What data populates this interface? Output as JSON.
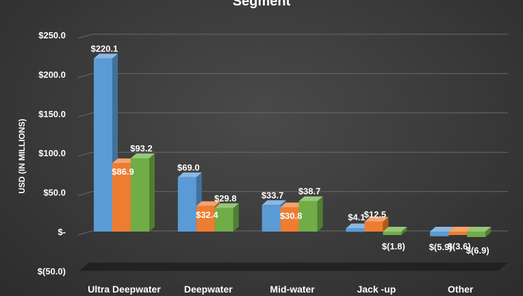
{
  "chart_data": {
    "type": "bar",
    "title": "Segment",
    "xlabel": "",
    "ylabel": "USD (IN MILLIONS)",
    "ylim": [
      -50,
      250
    ],
    "yticks": [
      250,
      200,
      150,
      100,
      50,
      0,
      -50
    ],
    "ytick_labels": [
      "$250.0",
      "$200.0",
      "$150.0",
      "$100.0",
      "$50.0",
      "$-",
      "$(50.0)"
    ],
    "categories": [
      "Ultra Deepwater",
      "Deepwater",
      "Mid-water",
      "Jack -up",
      "Other"
    ],
    "series": [
      {
        "values": [
          220.1,
          69.0,
          33.7,
          4.1,
          -5.9
        ],
        "labels": [
          "$220.1",
          "$69.0",
          "$33.7",
          "$4.1",
          "$(5.9)"
        ]
      },
      {
        "values": [
          86.9,
          32.4,
          30.8,
          12.5,
          -3.6
        ],
        "labels": [
          "$86.9",
          "$32.4",
          "$30.8",
          "$12.5",
          "$(3.6)"
        ]
      },
      {
        "values": [
          93.2,
          29.8,
          38.7,
          -1.8,
          -6.9
        ],
        "labels": [
          "$93.2",
          "$29.8",
          "$38.7",
          "$(1.8)",
          "$(6.9)"
        ]
      }
    ],
    "grid": true,
    "legend": "none",
    "colors": {
      "series": [
        "#5b9bd5",
        "#ed7d31",
        "#70ad47"
      ],
      "series_dark": [
        "#41719c",
        "#ae5a21",
        "#507e32"
      ],
      "series_top": [
        "#8ab8e3",
        "#f4a46e",
        "#96c77a"
      ],
      "background": "#3a3a3a",
      "grid": "#6a6a6a",
      "text": "#ffffff"
    }
  }
}
